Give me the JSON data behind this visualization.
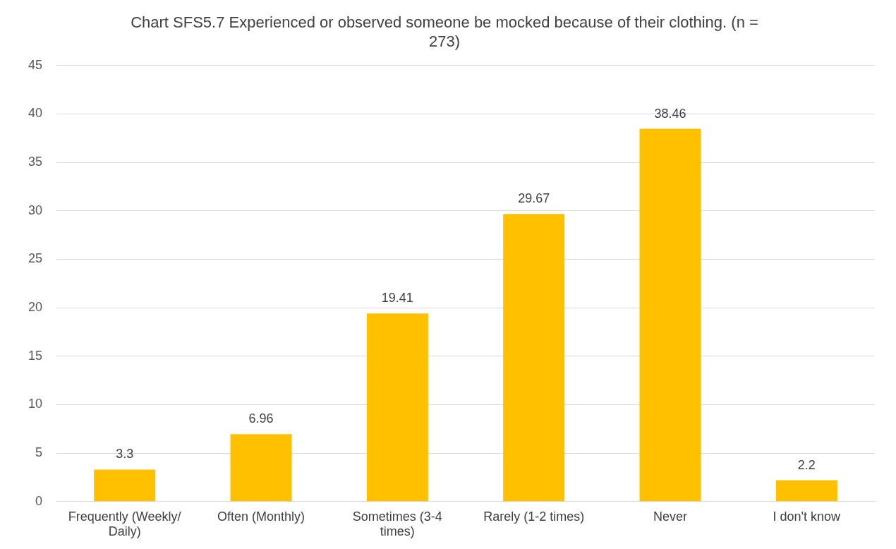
{
  "chart_data": {
    "type": "bar",
    "title": "Chart SFS5.7 Experienced or observed someone be mocked because of their clothing. (n = 273)",
    "categories": [
      "Frequently (Weekly/ Daily)",
      "Often (Monthly)",
      "Sometimes (3-4 times)",
      "Rarely (1-2 times)",
      "Never",
      "I don't know"
    ],
    "values": [
      3.3,
      6.96,
      19.41,
      29.67,
      38.46,
      2.2
    ],
    "color": "#ffc000",
    "ylim": [
      0,
      45
    ],
    "yticks": [
      0,
      5,
      10,
      15,
      20,
      25,
      30,
      35,
      40,
      45
    ],
    "grid": "y",
    "data_labels": true,
    "legend": false
  }
}
